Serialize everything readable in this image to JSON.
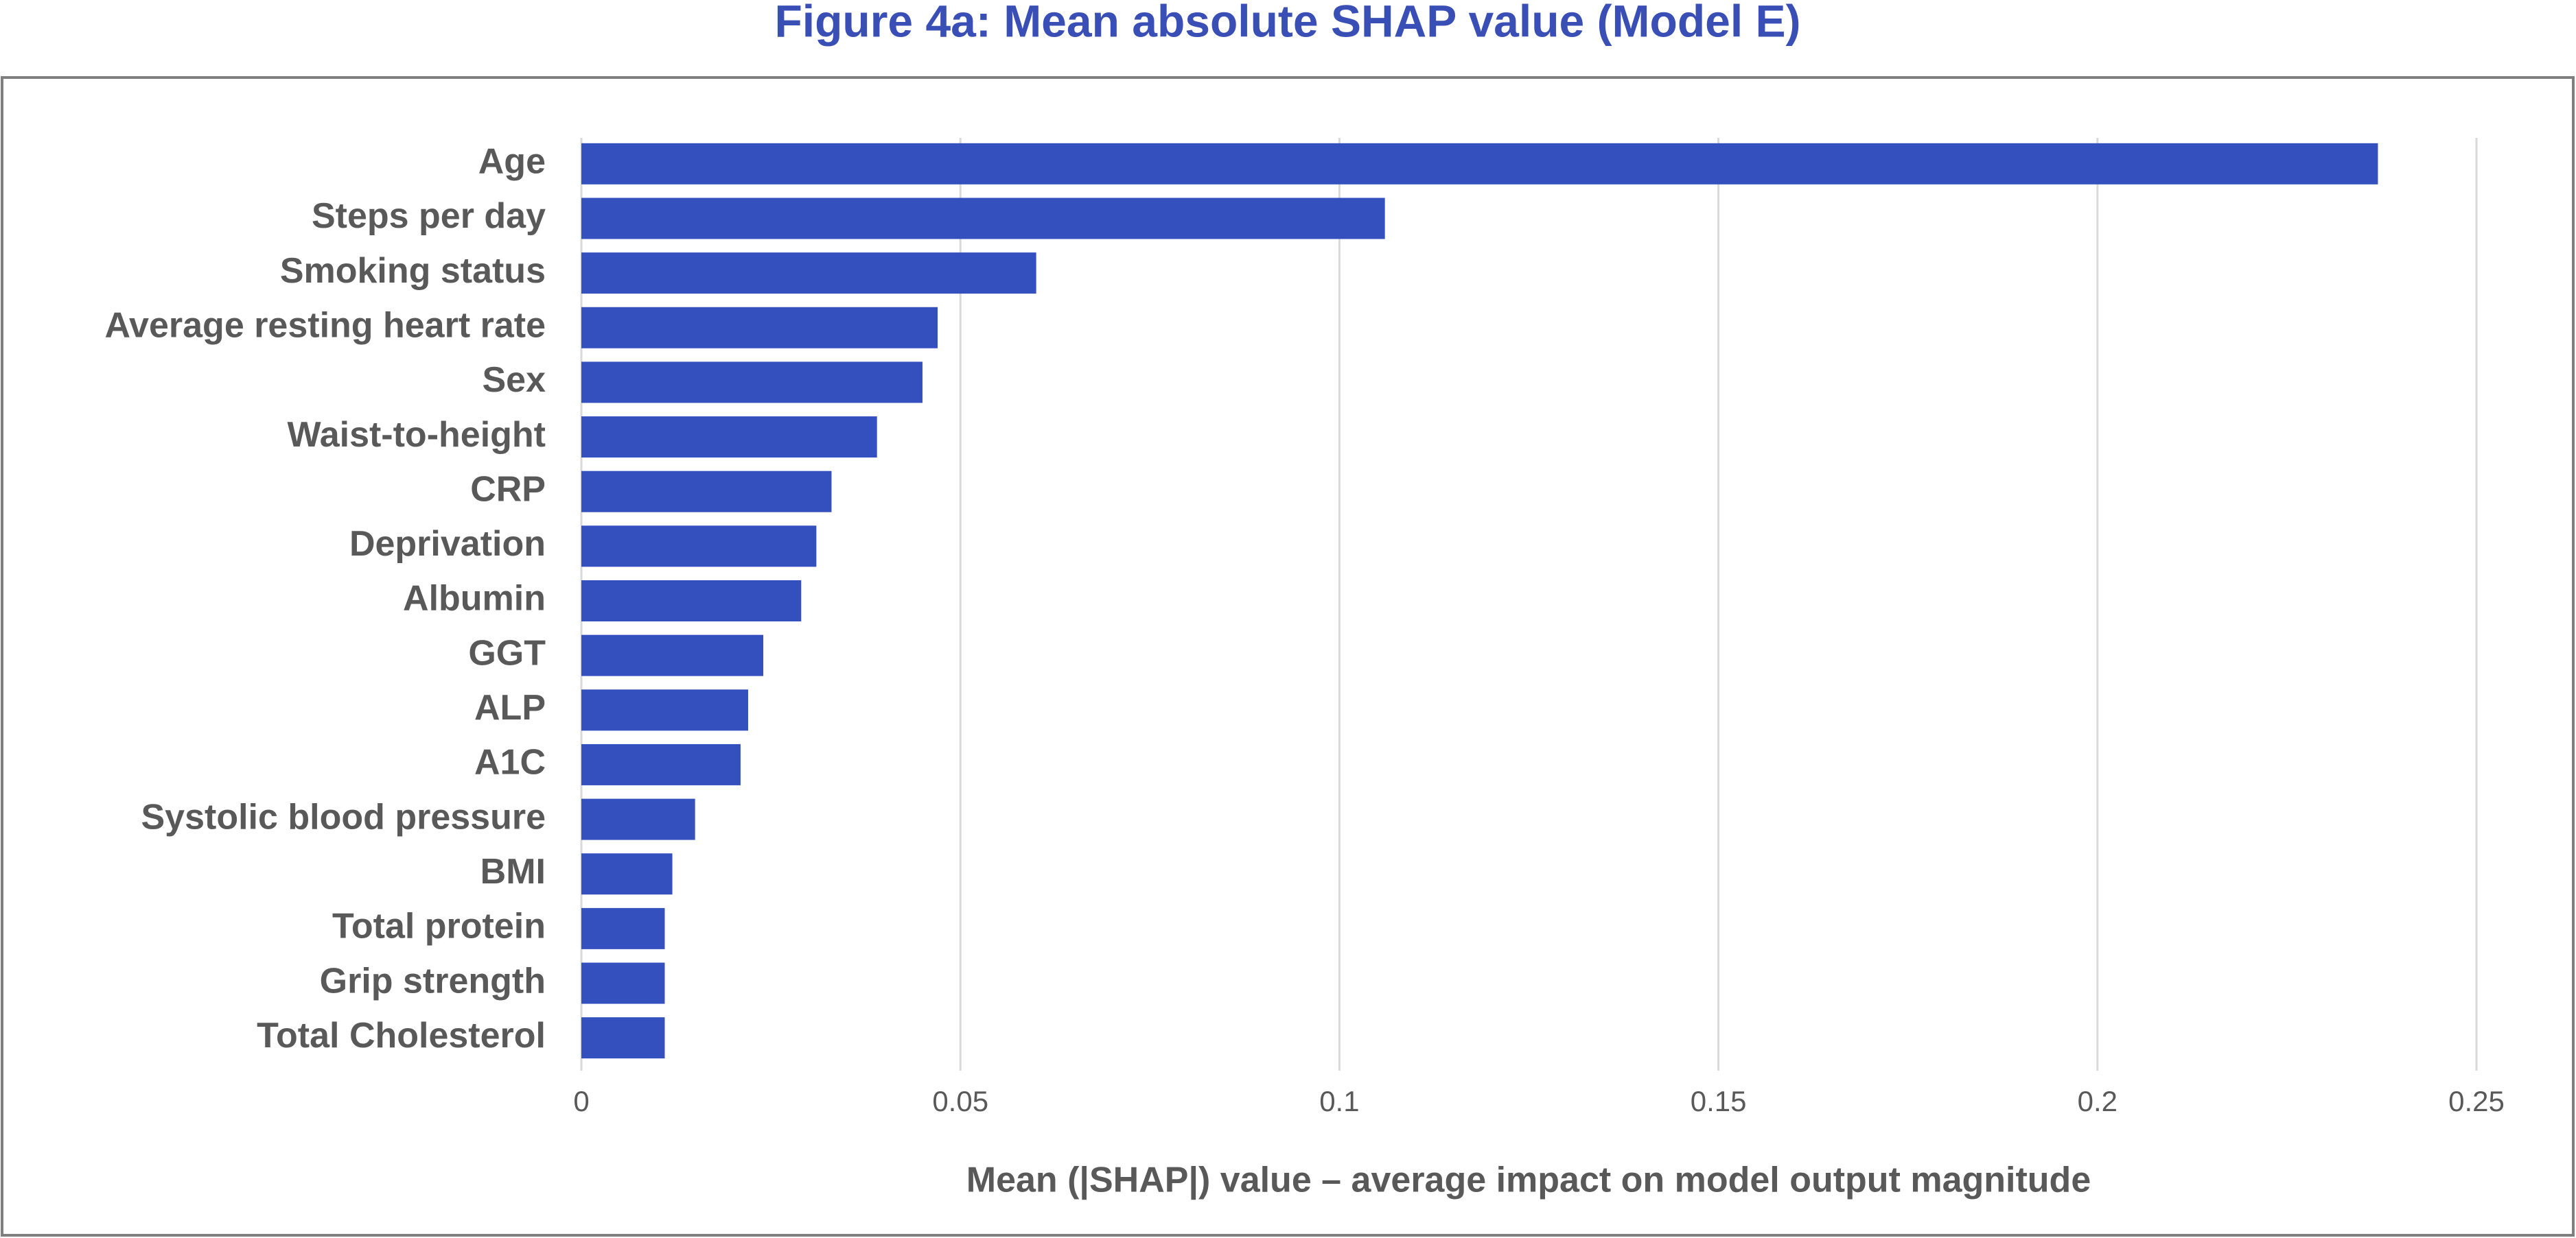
{
  "chart_data": {
    "type": "bar",
    "orientation": "horizontal",
    "title": "Figure 4a: Mean absolute SHAP value (Model E)",
    "x_label": "Mean (|SHAP|) value – average impact on model output magnitude",
    "categories": [
      "Age",
      "Steps per day",
      "Smoking status",
      "Average resting heart rate",
      "Sex",
      "Waist-to-height",
      "CRP",
      "Deprivation",
      "Albumin",
      "GGT",
      "ALP",
      "A1C",
      "Systolic blood pressure",
      "BMI",
      "Total protein",
      "Grip strength",
      "Total Cholesterol"
    ],
    "values": [
      0.237,
      0.106,
      0.06,
      0.047,
      0.045,
      0.039,
      0.033,
      0.031,
      0.029,
      0.024,
      0.022,
      0.021,
      0.015,
      0.012,
      0.011,
      0.011,
      0.011
    ],
    "color": "#3450bf",
    "xlim": [
      0,
      0.25
    ],
    "xticks": [
      0,
      0.05,
      0.1,
      0.15,
      0.2,
      0.25
    ],
    "grid": true
  }
}
